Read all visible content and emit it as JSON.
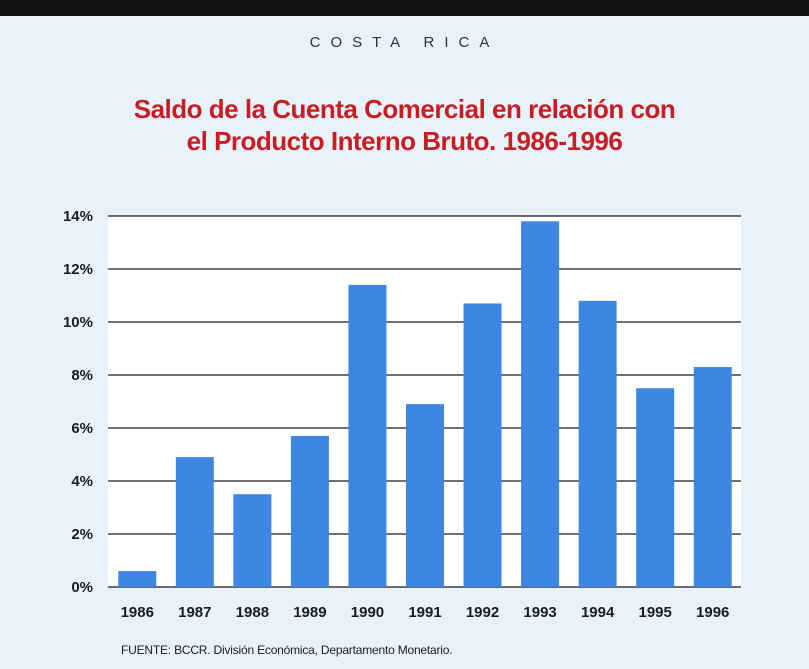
{
  "header": {
    "country": "COSTA RICA",
    "title_line1": "Saldo de la Cuenta Comercial en relación con",
    "title_line2": "el Producto Interno Bruto. 1986-1996"
  },
  "source": "FUENTE: BCCR. División Económica, Departamento Monetario.",
  "colors": {
    "background": "#e7f2fb",
    "plot_area": "#ffffff",
    "bar": "#3d86e3",
    "title": "#c81d22",
    "text": "#1c1c1c"
  },
  "chart_data": {
    "type": "bar",
    "title": "Saldo de la Cuenta Comercial en relación con el Producto Interno Bruto. 1986-1996",
    "xlabel": "",
    "ylabel": "",
    "categories": [
      "1986",
      "1987",
      "1988",
      "1989",
      "1990",
      "1991",
      "1992",
      "1993",
      "1994",
      "1995",
      "1996"
    ],
    "values": [
      0.6,
      4.9,
      3.5,
      5.7,
      11.4,
      6.9,
      10.7,
      13.8,
      10.8,
      7.5,
      8.3
    ],
    "ylim": [
      0,
      14
    ],
    "yticks": [
      0,
      2,
      4,
      6,
      8,
      10,
      12,
      14
    ],
    "ytick_labels": [
      "0%",
      "2%",
      "4%",
      "6%",
      "8%",
      "10%",
      "12%",
      "14%"
    ],
    "grid": true,
    "legend": "none"
  }
}
